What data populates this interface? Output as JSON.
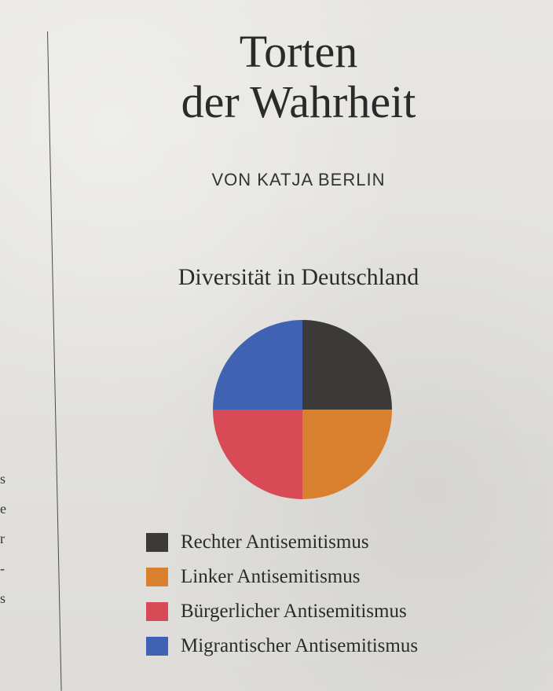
{
  "header": {
    "title_line1": "Torten",
    "title_line2": "der Wahrheit",
    "byline": "VON KATJA BERLIN"
  },
  "chart_data": {
    "type": "pie",
    "title": "Diversität in Deutschland",
    "unit": "percent",
    "start_angle_deg": 0,
    "direction": "clockwise",
    "slices": [
      {
        "label": "Rechter Antisemitismus",
        "value": 25,
        "color": "#3b3a38"
      },
      {
        "label": "Linker Antisemitismus",
        "value": 25,
        "color": "#d9802f"
      },
      {
        "label": "Bürgerlicher Antisemitismus",
        "value": 25,
        "color": "#d84a55"
      },
      {
        "label": "Migrantischer Antisemitismus",
        "value": 25,
        "color": "#3f63b2"
      }
    ],
    "legend_position": "bottom"
  }
}
